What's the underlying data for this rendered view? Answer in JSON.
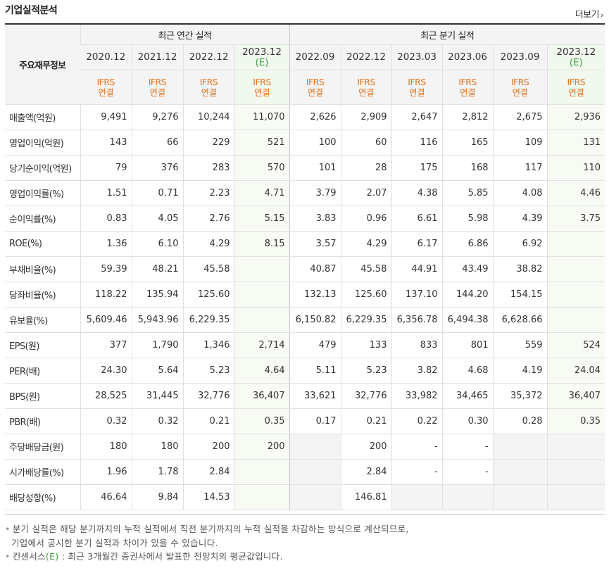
{
  "header": {
    "title": "기업실적분석",
    "more_label": "더보기"
  },
  "table": {
    "stub_label": "주요재무정보",
    "group_annual": "최근 연간 실적",
    "group_quarter": "최근 분기 실적",
    "periods": [
      {
        "label": "2020.12",
        "est": false
      },
      {
        "label": "2021.12",
        "est": false
      },
      {
        "label": "2022.12",
        "est": false
      },
      {
        "label": "2023.12",
        "est": true
      },
      {
        "label": "2022.09",
        "est": false
      },
      {
        "label": "2022.12",
        "est": false
      },
      {
        "label": "2023.03",
        "est": false
      },
      {
        "label": "2023.06",
        "est": false
      },
      {
        "label": "2023.09",
        "est": false
      },
      {
        "label": "2023.12",
        "est": true
      }
    ],
    "est_mark": "(E)",
    "ifrs_line1": "IFRS",
    "ifrs_line2": "연결",
    "rows": [
      {
        "label": "매출액(억원)",
        "values": [
          "9,491",
          "9,276",
          "10,244",
          "11,070",
          "2,626",
          "2,909",
          "2,647",
          "2,812",
          "2,675",
          "2,936"
        ]
      },
      {
        "label": "영업이익(억원)",
        "values": [
          "143",
          "66",
          "229",
          "521",
          "100",
          "60",
          "116",
          "165",
          "109",
          "131"
        ]
      },
      {
        "label": "당기순이익(억원)",
        "values": [
          "79",
          "376",
          "283",
          "570",
          "101",
          "28",
          "175",
          "168",
          "117",
          "110"
        ]
      },
      {
        "label": "영업이익률(%)",
        "values": [
          "1.51",
          "0.71",
          "2.23",
          "4.71",
          "3.79",
          "2.07",
          "4.38",
          "5.85",
          "4.08",
          "4.46"
        ]
      },
      {
        "label": "순이익률(%)",
        "values": [
          "0.83",
          "4.05",
          "2.76",
          "5.15",
          "3.83",
          "0.96",
          "6.61",
          "5.98",
          "4.39",
          "3.75"
        ]
      },
      {
        "label": "ROE(%)",
        "values": [
          "1.36",
          "6.10",
          "4.29",
          "8.15",
          "3.57",
          "4.29",
          "6.17",
          "6.86",
          "6.92",
          ""
        ]
      },
      {
        "label": "부채비율(%)",
        "values": [
          "59.39",
          "48.21",
          "45.58",
          "",
          "40.87",
          "45.58",
          "44.91",
          "43.49",
          "38.82",
          ""
        ]
      },
      {
        "label": "당좌비율(%)",
        "values": [
          "118.22",
          "135.94",
          "125.60",
          "",
          "132.13",
          "125.60",
          "137.10",
          "144.20",
          "154.15",
          ""
        ]
      },
      {
        "label": "유보율(%)",
        "values": [
          "5,609.46",
          "5,943.96",
          "6,229.35",
          "",
          "6,150.82",
          "6,229.35",
          "6,356.78",
          "6,494.38",
          "6,628.66",
          ""
        ]
      },
      {
        "label": "EPS(원)",
        "values": [
          "377",
          "1,790",
          "1,346",
          "2,714",
          "479",
          "133",
          "833",
          "801",
          "559",
          "524"
        ]
      },
      {
        "label": "PER(배)",
        "values": [
          "24.30",
          "5.64",
          "5.23",
          "4.64",
          "5.11",
          "5.23",
          "3.82",
          "4.68",
          "4.19",
          "24.04"
        ]
      },
      {
        "label": "BPS(원)",
        "values": [
          "28,525",
          "31,445",
          "32,776",
          "36,407",
          "33,621",
          "32,776",
          "33,982",
          "34,465",
          "35,372",
          "36,407"
        ]
      },
      {
        "label": "PBR(배)",
        "values": [
          "0.32",
          "0.32",
          "0.21",
          "0.35",
          "0.17",
          "0.21",
          "0.22",
          "0.30",
          "0.28",
          "0.35"
        ]
      },
      {
        "label": "주당배당금(원)",
        "values": [
          "180",
          "180",
          "200",
          "200",
          "",
          "200",
          "-",
          "-",
          "",
          ""
        ]
      },
      {
        "label": "시가배당률(%)",
        "values": [
          "1.96",
          "1.78",
          "2.84",
          "",
          "",
          "2.84",
          "-",
          "-",
          "",
          ""
        ]
      },
      {
        "label": "배당성향(%)",
        "values": [
          "46.64",
          "9.84",
          "14.53",
          "",
          "",
          "146.81",
          "",
          "",
          "",
          ""
        ]
      }
    ],
    "blank_cells": [
      [
        13,
        4
      ],
      [
        13,
        8
      ],
      [
        13,
        9
      ],
      [
        14,
        4
      ],
      [
        14,
        8
      ],
      [
        14,
        9
      ],
      [
        15,
        4
      ],
      [
        15,
        6
      ],
      [
        15,
        7
      ],
      [
        15,
        8
      ],
      [
        15,
        9
      ]
    ],
    "group_starts": [
      3,
      6,
      9,
      13
    ]
  },
  "notes": {
    "line1": "분기 실적은 해당 분기까지의 누적 실적에서 직전 분기까지의 누적 실적을 차감하는 방식으로 계산되므로,",
    "line2": "기업에서 공시한 분기 실적과 차이가 있을 수 있습니다.",
    "line3_prefix": "컨센서스",
    "line3_mark": "(E)",
    "line3_rest": " : 최근 3개월간 증권사에서 발표한 전망치의 평균값입니다."
  }
}
